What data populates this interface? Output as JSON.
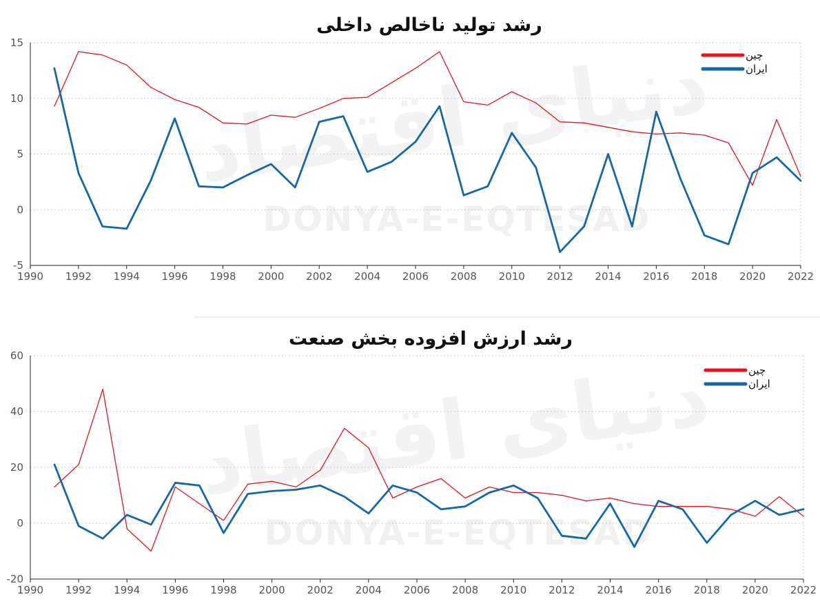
{
  "watermark": {
    "latin": "DONYA-E-EQTESAD",
    "arabic": "دنیای اقتصاد"
  },
  "chart_data": [
    {
      "type": "line",
      "title": "رشد تولید ناخالص داخلی",
      "xlim": [
        1990,
        2022
      ],
      "ylim": [
        -5,
        15
      ],
      "x_ticks": [
        1990,
        1992,
        1994,
        1996,
        1998,
        2000,
        2002,
        2004,
        2006,
        2008,
        2010,
        2012,
        2014,
        2016,
        2018,
        2020,
        2022
      ],
      "y_ticks": [
        -5,
        0,
        5,
        10,
        15
      ],
      "grid": "horizontal dotted",
      "legend_position": "top-right",
      "x": [
        1991,
        1992,
        1993,
        1994,
        1995,
        1996,
        1997,
        1998,
        1999,
        2000,
        2001,
        2002,
        2003,
        2004,
        2005,
        2006,
        2007,
        2008,
        2009,
        2010,
        2011,
        2012,
        2013,
        2014,
        2015,
        2016,
        2017,
        2018,
        2019,
        2020,
        2021,
        2022
      ],
      "series": [
        {
          "name": "چین",
          "color": "#e8131b",
          "width": 1.3,
          "values": [
            9.3,
            14.2,
            13.9,
            13.0,
            11.0,
            9.9,
            9.2,
            7.8,
            7.7,
            8.5,
            8.3,
            9.1,
            10.0,
            10.1,
            11.4,
            12.7,
            14.2,
            9.7,
            9.4,
            10.6,
            9.6,
            7.9,
            7.8,
            7.4,
            7.0,
            6.8,
            6.9,
            6.7,
            6.0,
            2.2,
            8.1,
            3.0
          ]
        },
        {
          "name": "ایران",
          "color": "#1667a8",
          "width": 2.8,
          "values": [
            12.7,
            3.3,
            -1.5,
            -1.7,
            2.6,
            8.2,
            2.1,
            2.0,
            3.1,
            4.1,
            2.0,
            7.9,
            8.4,
            3.4,
            4.3,
            6.1,
            9.3,
            1.3,
            2.1,
            6.9,
            3.8,
            -3.8,
            -1.5,
            5.0,
            -1.5,
            8.8,
            2.8,
            -2.3,
            -3.1,
            3.3,
            4.7,
            2.6
          ]
        }
      ]
    },
    {
      "type": "line",
      "title": "رشد ارزش افزوده بخش صنعت",
      "xlim": [
        1990,
        2022
      ],
      "ylim": [
        -20,
        60
      ],
      "x_ticks": [
        1990,
        1992,
        1994,
        1996,
        1998,
        2000,
        2002,
        2004,
        2006,
        2008,
        2010,
        2012,
        2014,
        2016,
        2018,
        2020,
        2022
      ],
      "y_ticks": [
        -20,
        0,
        20,
        40,
        60
      ],
      "grid": "horizontal dotted",
      "legend_position": "top-right",
      "x": [
        1991,
        1992,
        1993,
        1994,
        1995,
        1996,
        1997,
        1998,
        1999,
        2000,
        2001,
        2002,
        2003,
        2004,
        2005,
        2006,
        2007,
        2008,
        2009,
        2010,
        2011,
        2012,
        2013,
        2014,
        2015,
        2016,
        2017,
        2018,
        2019,
        2020,
        2021,
        2022
      ],
      "series": [
        {
          "name": "چین",
          "color": "#e8131b",
          "width": 1.3,
          "values": [
            13,
            21,
            48,
            -2,
            -10,
            13,
            7,
            1,
            14,
            15,
            13,
            19,
            34,
            27,
            9,
            13,
            16,
            9,
            13,
            11,
            11,
            10,
            8,
            9,
            7,
            6,
            6,
            6,
            5,
            2.5,
            9.5,
            2.5
          ]
        },
        {
          "name": "ایران",
          "color": "#1667a8",
          "width": 2.8,
          "values": [
            21,
            -1,
            -5.5,
            3,
            -0.5,
            14.5,
            13.5,
            -3.5,
            10.5,
            11.5,
            12,
            13.5,
            9.5,
            3.5,
            13.5,
            11,
            5,
            6,
            11,
            13.5,
            9,
            -4.5,
            -5.5,
            7,
            -8.5,
            8,
            5,
            -7,
            3,
            8,
            3,
            5
          ]
        }
      ]
    }
  ]
}
